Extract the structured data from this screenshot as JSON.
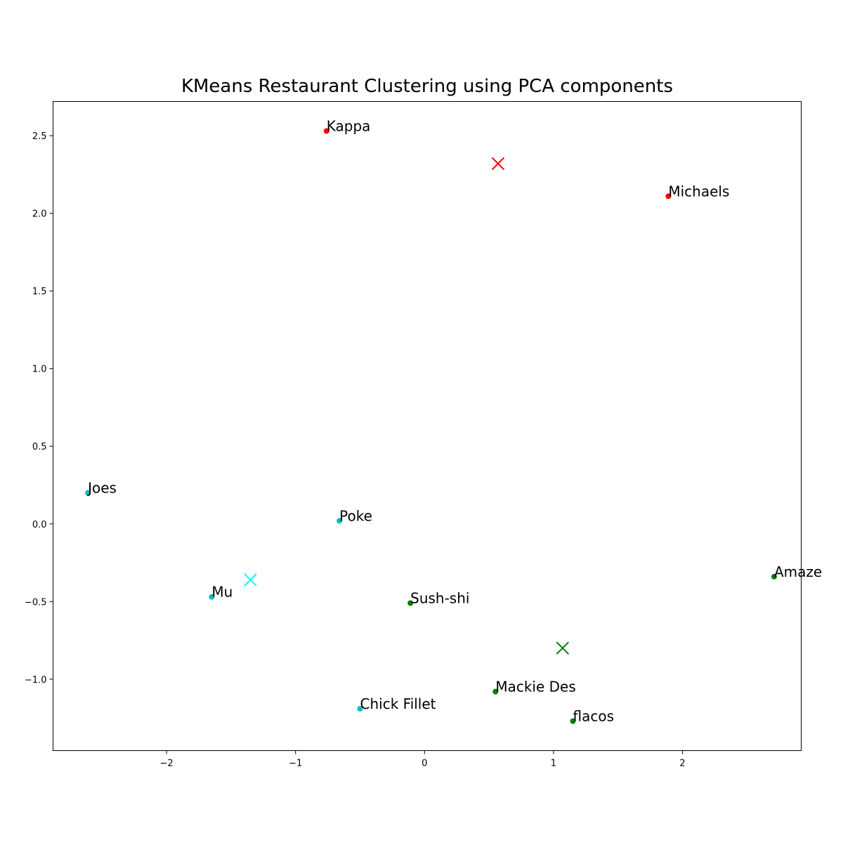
{
  "chart_data": {
    "type": "scatter",
    "title": "KMeans Restaurant Clustering using PCA components",
    "xlabel": "",
    "ylabel": "",
    "xlim": [
      -2.88,
      2.92
    ],
    "ylim": [
      -1.46,
      2.72
    ],
    "x_ticks": [
      -2,
      -1,
      0,
      1,
      2
    ],
    "x_tick_labels": [
      "−2",
      "−1",
      "0",
      "1",
      "2"
    ],
    "y_ticks": [
      -1.0,
      -0.5,
      0.0,
      0.5,
      1.0,
      1.5,
      2.0,
      2.5
    ],
    "y_tick_labels": [
      "−1.0",
      "−0.5",
      "0.0",
      "0.5",
      "1.0",
      "1.5",
      "2.0",
      "2.5"
    ],
    "grid": false,
    "legend": "none",
    "cluster_colors": [
      "#ff0000",
      "#00bfbf",
      "#008000"
    ],
    "centroid_colors": [
      "#ff0000",
      "#00ffff",
      "#008000"
    ],
    "points": [
      {
        "label": "Kappa",
        "x": -0.76,
        "y": 2.53,
        "cluster": 0
      },
      {
        "label": "Michaels",
        "x": 1.89,
        "y": 2.11,
        "cluster": 0
      },
      {
        "label": "Joes",
        "x": -2.61,
        "y": 0.2,
        "cluster": 1
      },
      {
        "label": "Poke",
        "x": -0.66,
        "y": 0.02,
        "cluster": 1
      },
      {
        "label": "Mu",
        "x": -1.65,
        "y": -0.47,
        "cluster": 1
      },
      {
        "label": "Chick Fillet",
        "x": -0.5,
        "y": -1.19,
        "cluster": 1
      },
      {
        "label": "Sush-shi",
        "x": -0.11,
        "y": -0.51,
        "cluster": 2
      },
      {
        "label": "Amaze",
        "x": 2.71,
        "y": -0.34,
        "cluster": 2
      },
      {
        "label": "Mackie Des",
        "x": 0.55,
        "y": -1.08,
        "cluster": 2
      },
      {
        "label": "flacos",
        "x": 1.15,
        "y": -1.27,
        "cluster": 2
      }
    ],
    "centroids": [
      {
        "x": 0.57,
        "y": 2.32,
        "cluster": 0
      },
      {
        "x": -1.35,
        "y": -0.36,
        "cluster": 1
      },
      {
        "x": 1.07,
        "y": -0.8,
        "cluster": 2
      }
    ]
  }
}
